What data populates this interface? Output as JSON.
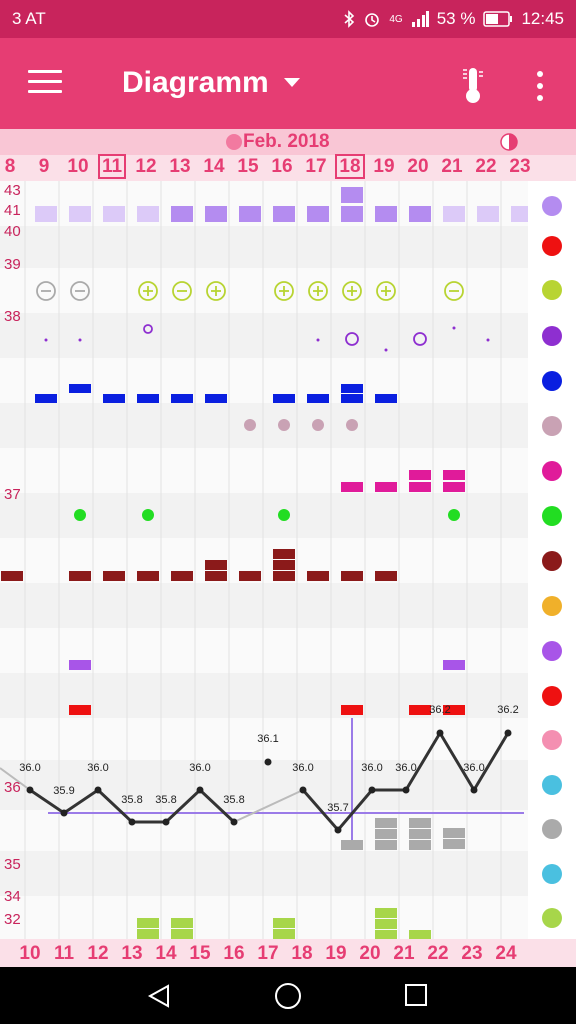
{
  "status_bar": {
    "carrier": "3 AT",
    "network": "4G",
    "battery": "53 %",
    "time": "12:45"
  },
  "app_bar": {
    "title": "Diagramm"
  },
  "month_label": "Feb. 2018",
  "top_days": [
    "8",
    "9",
    "10",
    "11",
    "12",
    "13",
    "14",
    "15",
    "16",
    "17",
    "18",
    "19",
    "20",
    "21",
    "22",
    "23"
  ],
  "bottom_days": [
    "10",
    "11",
    "12",
    "13",
    "14",
    "15",
    "16",
    "17",
    "18",
    "19",
    "20",
    "21",
    "22",
    "23",
    "24"
  ],
  "y_labels": [
    "43",
    "41",
    "40",
    "39",
    "38",
    "37",
    "36",
    "35",
    "34",
    "32"
  ],
  "temperature_labels": [
    "36.0",
    "35.9",
    "36.0",
    "35.8",
    "35.8",
    "36.0",
    "35.8",
    "36.1",
    "36.0",
    "35.7",
    "36.0",
    "36.0",
    "36.2",
    "36.0",
    "36.2"
  ],
  "right_icons": [
    "flower-icon",
    "blood-drop-icon",
    "splash-icon",
    "cervix-rings-icon",
    "heart-icon",
    "smiley-icon",
    "pain-icon",
    "document-icon",
    "burst-icon",
    "pill-icon",
    "drop-icon",
    "activity-icon",
    "mood-icon",
    "person-icon",
    "balloon-icon",
    "sparkle-icon",
    "woman-icon",
    "cycle-icon"
  ],
  "colors": {
    "status": "#c8245c",
    "appbar": "#e63d73",
    "accent": "#e63d73"
  }
}
